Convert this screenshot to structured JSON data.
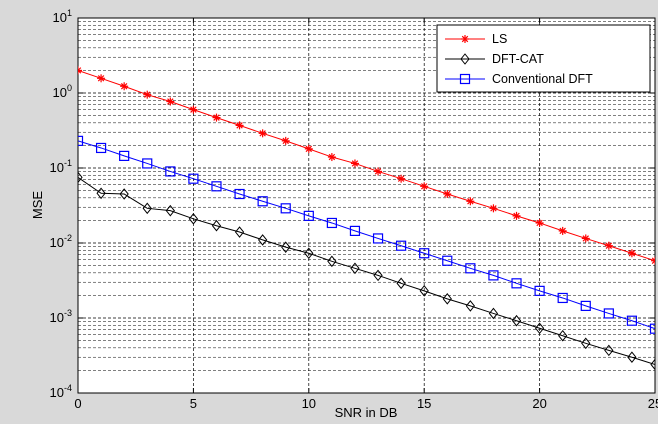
{
  "chart_data": {
    "type": "line",
    "xlabel": "SNR in DB",
    "ylabel": "MSE",
    "xlim": [
      0,
      25
    ],
    "ylim": [
      0.0001,
      10
    ],
    "yscale": "log",
    "grid": true,
    "legend_position": "top-right",
    "x_ticks": [
      "0",
      "5",
      "10",
      "15",
      "20",
      "25"
    ],
    "y_ticks": [
      {
        "base": "10",
        "exp": "-4"
      },
      {
        "base": "10",
        "exp": "-3"
      },
      {
        "base": "10",
        "exp": "-2"
      },
      {
        "base": "10",
        "exp": "-1"
      },
      {
        "base": "10",
        "exp": "0"
      },
      {
        "base": "10",
        "exp": "1"
      }
    ],
    "x": [
      0,
      1,
      2,
      3,
      4,
      5,
      6,
      7,
      8,
      9,
      10,
      11,
      12,
      13,
      14,
      15,
      16,
      17,
      18,
      19,
      20,
      21,
      22,
      23,
      24,
      25
    ],
    "series": [
      {
        "name": "LS",
        "color": "#ff0000",
        "marker": "star",
        "values": [
          2.0,
          1.57,
          1.23,
          0.95,
          0.77,
          0.6,
          0.47,
          0.37,
          0.29,
          0.23,
          0.18,
          0.14,
          0.115,
          0.09,
          0.072,
          0.057,
          0.045,
          0.036,
          0.029,
          0.023,
          0.0185,
          0.0145,
          0.0115,
          0.0092,
          0.0073,
          0.0058
        ]
      },
      {
        "name": "DFT-CAT",
        "color": "#000000",
        "marker": "diamond",
        "values": [
          0.075,
          0.046,
          0.045,
          0.029,
          0.027,
          0.021,
          0.017,
          0.014,
          0.011,
          0.0088,
          0.0073,
          0.0057,
          0.0046,
          0.0037,
          0.0029,
          0.0023,
          0.0018,
          0.00145,
          0.00115,
          0.00092,
          0.00073,
          0.00058,
          0.00046,
          0.00037,
          0.0003,
          0.00024
        ]
      },
      {
        "name": "Conventional DFT",
        "color": "#0000ff",
        "marker": "square",
        "values": [
          0.23,
          0.185,
          0.145,
          0.115,
          0.09,
          0.072,
          0.057,
          0.045,
          0.036,
          0.029,
          0.023,
          0.0185,
          0.0145,
          0.0115,
          0.0092,
          0.0073,
          0.0058,
          0.0046,
          0.0037,
          0.0029,
          0.0023,
          0.00185,
          0.00145,
          0.00115,
          0.00092,
          0.00072
        ]
      }
    ]
  }
}
